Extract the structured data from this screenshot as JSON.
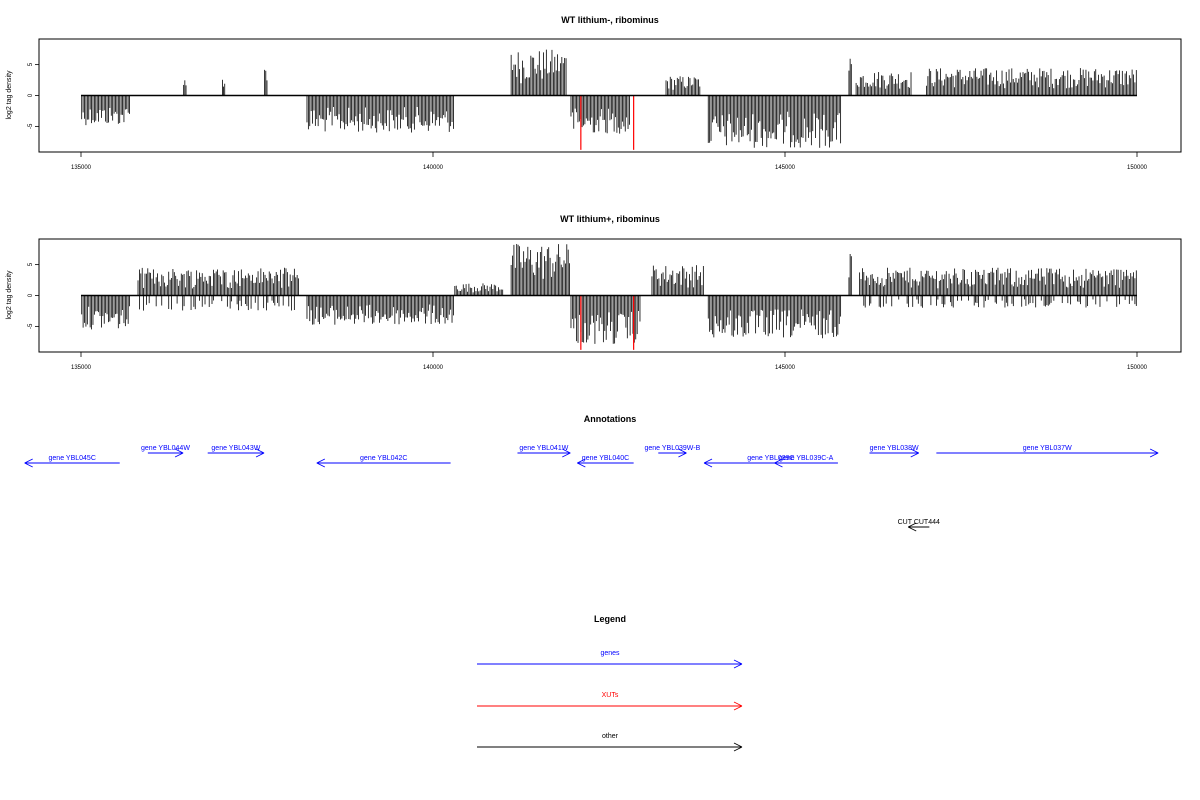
{
  "chart_data": [
    {
      "type": "bar",
      "title": "WT lithium-, ribominus",
      "ylabel": "log2 tag density",
      "xlim": [
        135000,
        150000
      ],
      "ylim": [
        -8.5,
        8.5
      ],
      "x_ticks": [
        "135000",
        "140000",
        "145000",
        "150000"
      ],
      "y_ticks": [
        "5",
        "0",
        "-5"
      ],
      "grid": false,
      "series": [
        {
          "color": "#000000",
          "bins": [
            {
              "start": 135000,
              "end": 135700,
              "min": -4.8,
              "max": 0
            },
            {
              "start": 136450,
              "end": 136500,
              "min": 0,
              "max": 2.5
            },
            {
              "start": 137000,
              "end": 137050,
              "min": 0,
              "max": 3.0
            },
            {
              "start": 137600,
              "end": 137650,
              "min": 0,
              "max": 4.5
            },
            {
              "start": 138200,
              "end": 140300,
              "min": -6.0,
              "max": 0
            },
            {
              "start": 141100,
              "end": 141900,
              "min": 0,
              "max": 7.5
            },
            {
              "start": 141950,
              "end": 142800,
              "min": -6.2,
              "max": 0
            },
            {
              "start": 143300,
              "end": 143800,
              "min": 0,
              "max": 3.2
            },
            {
              "start": 143900,
              "end": 145800,
              "min": -8.5,
              "max": 0
            },
            {
              "start": 145900,
              "end": 145950,
              "min": 0,
              "max": 6.5
            },
            {
              "start": 146000,
              "end": 146800,
              "min": 0,
              "max": 4.0
            },
            {
              "start": 147000,
              "end": 150000,
              "min": 0,
              "max": 4.5
            }
          ]
        },
        {
          "color": "#ff0000",
          "bins": [
            {
              "start": 142100,
              "end": 142150,
              "min": -8.8,
              "max": 0
            },
            {
              "start": 142850,
              "end": 142900,
              "min": -8.8,
              "max": 0
            }
          ]
        }
      ]
    },
    {
      "type": "bar",
      "title": "WT lithium+, ribominus",
      "ylabel": "log2 tag density",
      "xlim": [
        135000,
        150000
      ],
      "ylim": [
        -8.5,
        8.5
      ],
      "x_ticks": [
        "135000",
        "140000",
        "145000",
        "150000"
      ],
      "y_ticks": [
        "5",
        "0",
        "-5"
      ],
      "grid": false,
      "series": [
        {
          "color": "#000000",
          "bins": [
            {
              "start": 135000,
              "end": 135700,
              "min": -5.5,
              "max": 0
            },
            {
              "start": 135800,
              "end": 138100,
              "min": -2.5,
              "max": 4.5
            },
            {
              "start": 138200,
              "end": 140300,
              "min": -4.8,
              "max": 0
            },
            {
              "start": 140300,
              "end": 141000,
              "min": 0,
              "max": 2.0
            },
            {
              "start": 141100,
              "end": 141950,
              "min": 0,
              "max": 8.5
            },
            {
              "start": 141950,
              "end": 142950,
              "min": -8.0,
              "max": 0
            },
            {
              "start": 143100,
              "end": 143850,
              "min": 0,
              "max": 5.0
            },
            {
              "start": 143900,
              "end": 145800,
              "min": -7.0,
              "max": 0
            },
            {
              "start": 145900,
              "end": 145950,
              "min": 0,
              "max": 7.0
            },
            {
              "start": 146050,
              "end": 150000,
              "min": -2.0,
              "max": 4.5
            }
          ]
        },
        {
          "color": "#ff0000",
          "bins": [
            {
              "start": 142100,
              "end": 142150,
              "min": -8.8,
              "max": 0
            },
            {
              "start": 142850,
              "end": 142900,
              "min": -8.8,
              "max": 0
            }
          ]
        }
      ]
    }
  ],
  "annotations": {
    "title": "Annotations",
    "genes_color": "#0000ff",
    "other_color": "#000000",
    "items": [
      {
        "label": "gene YBL045C",
        "start": 134200,
        "end": 135550,
        "strand": "-",
        "row": 0,
        "color": "#0000ff"
      },
      {
        "label": "gene YBL044W",
        "start": 135950,
        "end": 136450,
        "strand": "+",
        "row": 1,
        "color": "#0000ff"
      },
      {
        "label": "gene YBL043W",
        "start": 136800,
        "end": 137600,
        "strand": "+",
        "row": 1,
        "color": "#0000ff"
      },
      {
        "label": "gene YBL042C",
        "start": 138350,
        "end": 140250,
        "strand": "-",
        "row": 0,
        "color": "#0000ff"
      },
      {
        "label": "gene YBL041W",
        "start": 141200,
        "end": 141950,
        "strand": "+",
        "row": 1,
        "color": "#0000ff"
      },
      {
        "label": "gene YBL040C",
        "start": 142050,
        "end": 142850,
        "strand": "-",
        "row": 0,
        "color": "#0000ff"
      },
      {
        "label": "gene YBL039W-B",
        "start": 143200,
        "end": 143600,
        "strand": "+",
        "row": 1,
        "color": "#0000ff"
      },
      {
        "label": "gene YBL039C",
        "start": 143850,
        "end": 145750,
        "strand": "-",
        "row": 0,
        "color": "#0000ff"
      },
      {
        "label": "gene YBL039C-A",
        "start": 144850,
        "end": 145750,
        "strand": "-",
        "row": 0,
        "color": "#0000ff"
      },
      {
        "label": "gene YBL038W",
        "start": 146200,
        "end": 146900,
        "strand": "+",
        "row": 1,
        "color": "#0000ff"
      },
      {
        "label": "gene YBL037W",
        "start": 147150,
        "end": 150300,
        "strand": "+",
        "row": 1,
        "color": "#0000ff"
      },
      {
        "label": "CUT CUT444",
        "start": 146750,
        "end": 147050,
        "strand": "-",
        "row": 2,
        "color": "#000000"
      }
    ]
  },
  "legend": {
    "title": "Legend",
    "items": [
      {
        "label": "genes",
        "color": "#0000ff"
      },
      {
        "label": "XUTs",
        "color": "#ff0000"
      },
      {
        "label": "other",
        "color": "#000000"
      }
    ]
  }
}
